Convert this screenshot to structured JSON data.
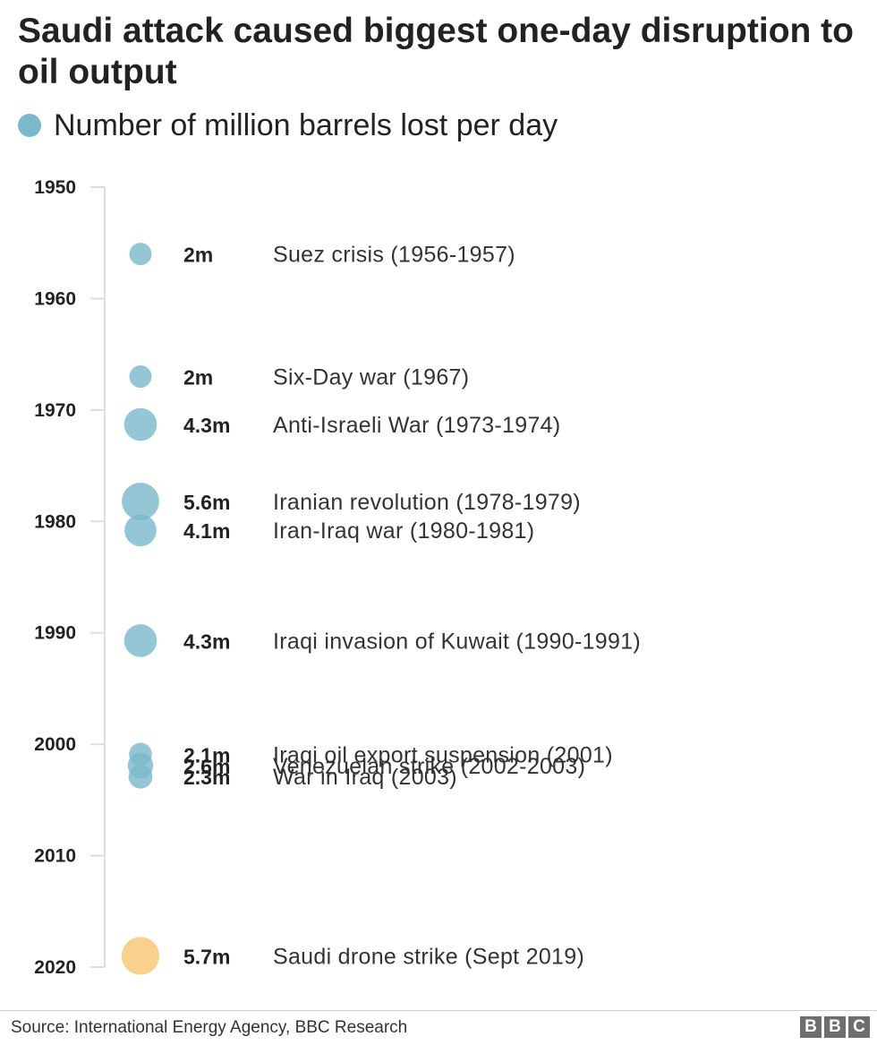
{
  "title": "Saudi attack caused biggest one-day disruption to oil output",
  "legend": {
    "label": "Number of million barrels lost per day"
  },
  "colors": {
    "historic": "#7ab8cc",
    "highlight": "#f9ce86",
    "axis": "#dddddd"
  },
  "chart_data": {
    "type": "scatter",
    "title": "Saudi attack caused biggest one-day disruption to oil output",
    "y_axis": {
      "ticks": [
        1950,
        1960,
        1970,
        1980,
        1990,
        2000,
        2010,
        2020
      ],
      "range": [
        1950,
        2020
      ],
      "inverted": true
    },
    "series": [
      {
        "name": "Number of million barrels lost per day",
        "points": [
          {
            "event": "Suez crisis (1956-1957)",
            "year": 1956,
            "value": 2.0,
            "value_label": "2m",
            "highlight": false
          },
          {
            "event": "Six-Day war (1967)",
            "year": 1967,
            "value": 2.0,
            "value_label": "2m",
            "highlight": false
          },
          {
            "event": "Anti-Israeli War (1973-1974)",
            "year": 1971.3,
            "value": 4.3,
            "value_label": "4.3m",
            "highlight": false
          },
          {
            "event": "Iranian revolution (1978-1979)",
            "year": 1978.2,
            "value": 5.6,
            "value_label": "5.6m",
            "highlight": false
          },
          {
            "event": "Iran-Iraq war (1980-1981)",
            "year": 1980.8,
            "value": 4.1,
            "value_label": "4.1m",
            "highlight": false
          },
          {
            "event": "Iraqi invasion of Kuwait (1990-1991)",
            "year": 1990.7,
            "value": 4.3,
            "value_label": "4.3m",
            "highlight": false
          },
          {
            "event": "Iraqi oil export suspension (2001)",
            "year": 2000.9,
            "value": 2.1,
            "value_label": "2.1m",
            "highlight": false
          },
          {
            "event": "Venezuelan strike (2002-2003)",
            "year": 2001.9,
            "value": 2.6,
            "value_label": "2.6m",
            "highlight": false
          },
          {
            "event": "War in Iraq (2003)",
            "year": 2002.9,
            "value": 2.3,
            "value_label": "2.3m",
            "highlight": false
          },
          {
            "event": "Saudi drone strike (Sept 2019)",
            "year": 2019,
            "value": 5.7,
            "value_label": "5.7m",
            "highlight": true
          }
        ]
      }
    ]
  },
  "footer": {
    "source": "Source: International Energy Agency, BBC Research",
    "logo": [
      "B",
      "B",
      "C"
    ]
  }
}
